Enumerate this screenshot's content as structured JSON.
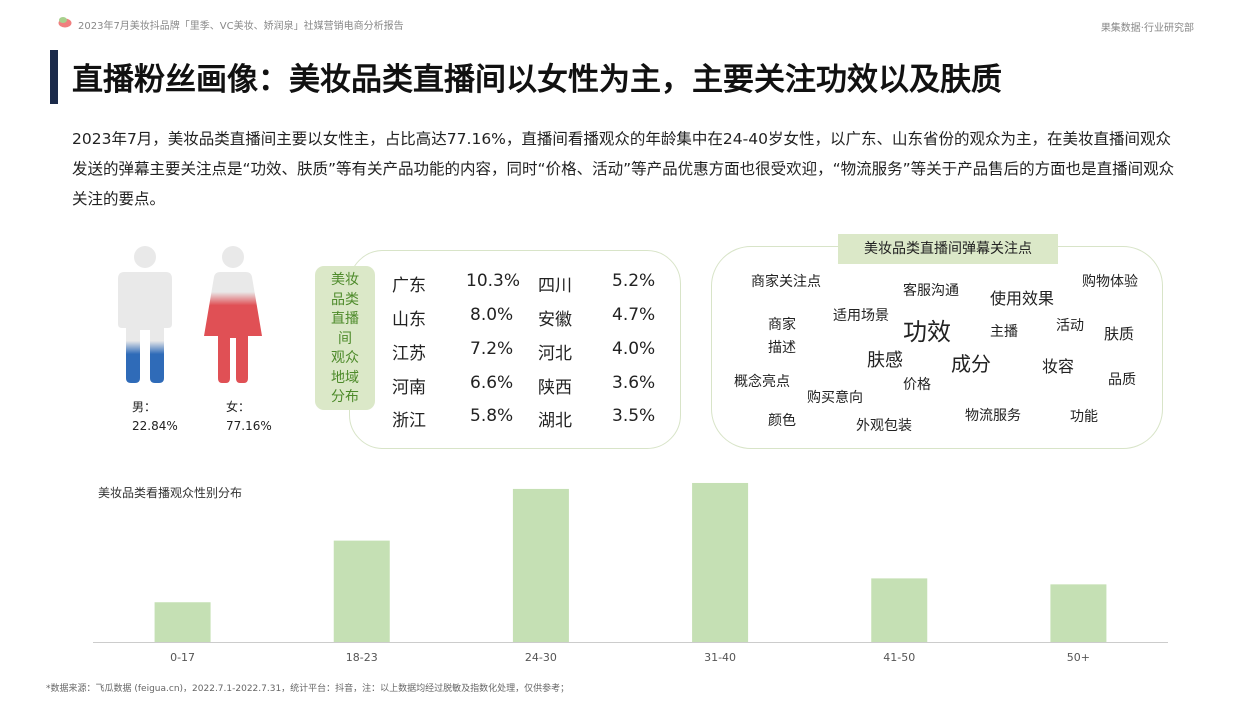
{
  "header": {
    "report_title": "2023年7月美妆抖品牌「里季、VC美妆、娇润泉」社媒营销电商分析报告",
    "brand": "果集数据·行业研究部"
  },
  "page_title": "直播粉丝画像：美妆品类直播间以女性为主，主要关注功效以及肤质",
  "summary": "2023年7月，美妆品类直播间主要以女性主，占比高达77.16%，直播间看播观众的年龄集中在24-40岁女性，以广东、山东省份的观众为主，在美妆直播间观众发送的弹幕主要关注点是“功效、肤质”等有关产品功能的内容，同时“价格、活动”等产品优惠方面也很受欢迎，“物流服务”等关于产品售后的方面也是直播间观众关注的要点。",
  "gender": {
    "male": {
      "label": "男：",
      "value": "22.84%",
      "share": 0.2284,
      "color": "#2f6bb8"
    },
    "female": {
      "label": "女：",
      "value": "77.16%",
      "share": 0.7716,
      "color": "#e05055"
    }
  },
  "region": {
    "tag": [
      "美妆",
      "品类",
      "直播",
      "间",
      "观众",
      "地域",
      "分布"
    ],
    "rows": [
      {
        "p1": "广东",
        "v1": "10.3%",
        "p2": "四川",
        "v2": "5.2%"
      },
      {
        "p1": "山东",
        "v1": "8.0%",
        "p2": "安徽",
        "v2": "4.7%"
      },
      {
        "p1": "江苏",
        "v1": "7.2%",
        "p2": "河北",
        "v2": "4.0%"
      },
      {
        "p1": "河南",
        "v1": "6.6%",
        "p2": "陕西",
        "v2": "3.6%"
      },
      {
        "p1": "浙江",
        "v1": "5.8%",
        "p2": "湖北",
        "v2": "3.5%"
      }
    ]
  },
  "keywords": {
    "title": "美妆品类直播间弹幕关注点",
    "words": [
      "商家关注点",
      "客服沟通",
      "使用效果",
      "购物体验",
      "商家",
      "描述",
      "适用场景",
      "功效",
      "主播",
      "活动",
      "肤质",
      "肤感",
      "成分",
      "妆容",
      "概念亮点",
      "价格",
      "品质",
      "购买意向",
      "颜色",
      "物流服务",
      "功能",
      "外观包装"
    ]
  },
  "chart_data": {
    "type": "bar",
    "title": "美妆品类看播观众性别分布",
    "categories": [
      "0-17",
      "18-23",
      "24-30",
      "31-40",
      "41-50",
      "50+"
    ],
    "values": [
      4,
      10.2,
      15.4,
      16.0,
      6.4,
      5.8
    ],
    "color": "#c5e0b4",
    "ylim": [
      0,
      16.5
    ],
    "grid": false,
    "legend": "none"
  },
  "footnote": "*数据来源：飞瓜数据 (feigua.cn)，2022.7.1-2022.7.31，统计平台：抖音，注：以上数据均经过脱敏及指数化处理，仅供参考；"
}
